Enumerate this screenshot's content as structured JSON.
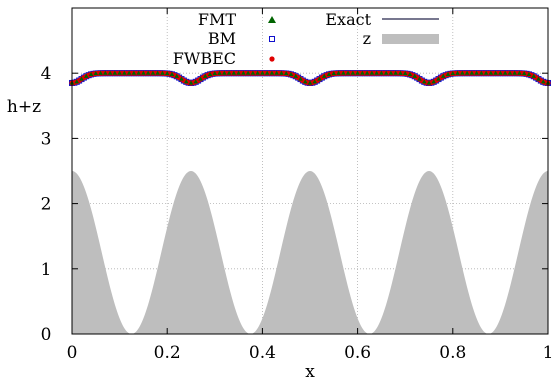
{
  "chart_data": {
    "type": "line",
    "xlabel": "x",
    "ylabel": "h+z",
    "xlim": [
      0,
      1
    ],
    "ylim": [
      0,
      5
    ],
    "x_ticks": [
      "0",
      "0.2",
      "0.4",
      "0.6",
      "0.8",
      "1"
    ],
    "y_ticks": [
      "0",
      "1",
      "2",
      "3",
      "4"
    ],
    "grid": true,
    "legend_position": "top",
    "bottom": {
      "name": "z",
      "function": "z(x) = 1.25 * (1 + cos(8*pi*x))",
      "amplitude": 1.25,
      "periods": 4,
      "color": "#bebebe"
    },
    "free_surface": {
      "function": "h+z = 4 - 0.15 * (1 + cos(8*pi*x))^8 / 256",
      "baseline": 4.0,
      "dip_depth": 0.15,
      "dip_sharpness": 8
    },
    "series": [
      {
        "name": "FMT",
        "marker": "triangle",
        "color": "#006400",
        "draw": "filled-marker"
      },
      {
        "name": "BM",
        "marker": "square",
        "color": "#1010cc",
        "draw": "open-marker"
      },
      {
        "name": "FWBEC",
        "marker": "circle",
        "color": "#e00000",
        "draw": "filled-marker"
      },
      {
        "name": "Exact",
        "marker": "line",
        "color": "#4a4a6a",
        "draw": "line"
      },
      {
        "name": "z",
        "marker": "filled-box",
        "color": "#bebebe",
        "draw": "area"
      }
    ]
  }
}
